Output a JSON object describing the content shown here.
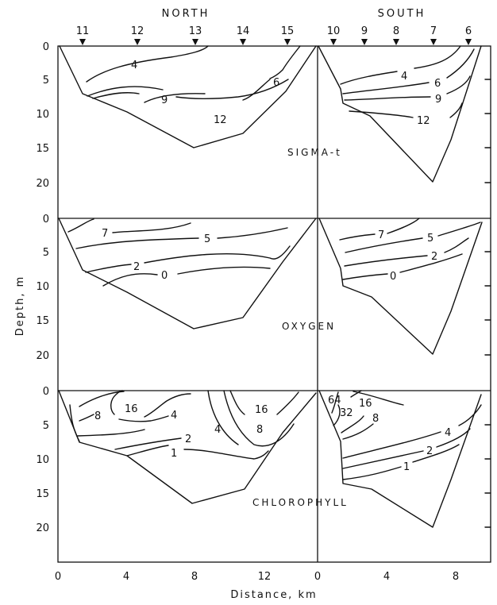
{
  "headings": {
    "north": "NORTH",
    "south": "SOUTH"
  },
  "stations": {
    "north": [
      "11",
      "12",
      "13",
      "14",
      "15"
    ],
    "south": [
      "10",
      "9",
      "8",
      "7",
      "6"
    ]
  },
  "panels": {
    "sigma": {
      "name": "SIGMA-t",
      "north_labels": [
        "4",
        "9",
        "12",
        "6"
      ],
      "south_labels": [
        "4",
        "6",
        "9",
        "12"
      ]
    },
    "oxygen": {
      "name": "OXYGEN",
      "north_labels": [
        "7",
        "5",
        "2",
        "0"
      ],
      "south_labels": [
        "7",
        "5",
        "2",
        "0"
      ]
    },
    "chlorophyll": {
      "name": "CHLOROPHYLL",
      "north_labels": [
        "16",
        "8",
        "4",
        "2",
        "1",
        "4",
        "16",
        "8"
      ],
      "south_labels": [
        "64",
        "32",
        "16",
        "8",
        "4",
        "2",
        "1"
      ]
    }
  },
  "axes": {
    "ylabel": "Depth, m",
    "xlabel": "Distance, km",
    "y_ticks": [
      "0",
      "5",
      "10",
      "15",
      "20"
    ],
    "y_ticks_bottom": [
      "0",
      "5",
      "10",
      "15",
      "20"
    ],
    "x_ticks_north": [
      "0",
      "4",
      "8",
      "12"
    ],
    "x_ticks_south": [
      "0",
      "4",
      "8"
    ]
  }
}
